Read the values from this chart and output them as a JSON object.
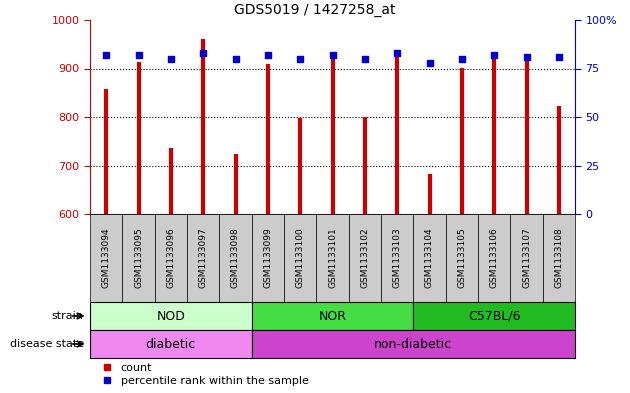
{
  "title": "GDS5019 / 1427258_at",
  "samples": [
    "GSM1133094",
    "GSM1133095",
    "GSM1133096",
    "GSM1133097",
    "GSM1133098",
    "GSM1133099",
    "GSM1133100",
    "GSM1133101",
    "GSM1133102",
    "GSM1133103",
    "GSM1133104",
    "GSM1133105",
    "GSM1133106",
    "GSM1133107",
    "GSM1133108"
  ],
  "counts": [
    858,
    913,
    737,
    961,
    723,
    910,
    797,
    925,
    800,
    936,
    682,
    901,
    935,
    930,
    822
  ],
  "percentiles": [
    82,
    82,
    80,
    83,
    80,
    82,
    80,
    82,
    80,
    83,
    78,
    80,
    82,
    81,
    81
  ],
  "ylim_left": [
    600,
    1000
  ],
  "ylim_right": [
    0,
    100
  ],
  "yticks_left": [
    600,
    700,
    800,
    900,
    1000
  ],
  "yticks_right": [
    0,
    25,
    50,
    75,
    100
  ],
  "bar_color": "#cc0000",
  "dot_color": "#0000cc",
  "strain_groups": [
    {
      "label": "NOD",
      "start": 0,
      "end": 4,
      "color": "#ccffcc"
    },
    {
      "label": "NOR",
      "start": 5,
      "end": 9,
      "color": "#44dd44"
    },
    {
      "label": "C57BL/6",
      "start": 10,
      "end": 14,
      "color": "#22bb22"
    }
  ],
  "disease_groups": [
    {
      "label": "diabetic",
      "start": 0,
      "end": 4,
      "color": "#ee88ee"
    },
    {
      "label": "non-diabetic",
      "start": 5,
      "end": 14,
      "color": "#cc44cc"
    }
  ],
  "strain_label": "strain",
  "disease_label": "disease state",
  "legend_count": "count",
  "legend_percentile": "percentile rank within the sample",
  "bar_width": 0.5,
  "tick_bg_color": "#cccccc"
}
